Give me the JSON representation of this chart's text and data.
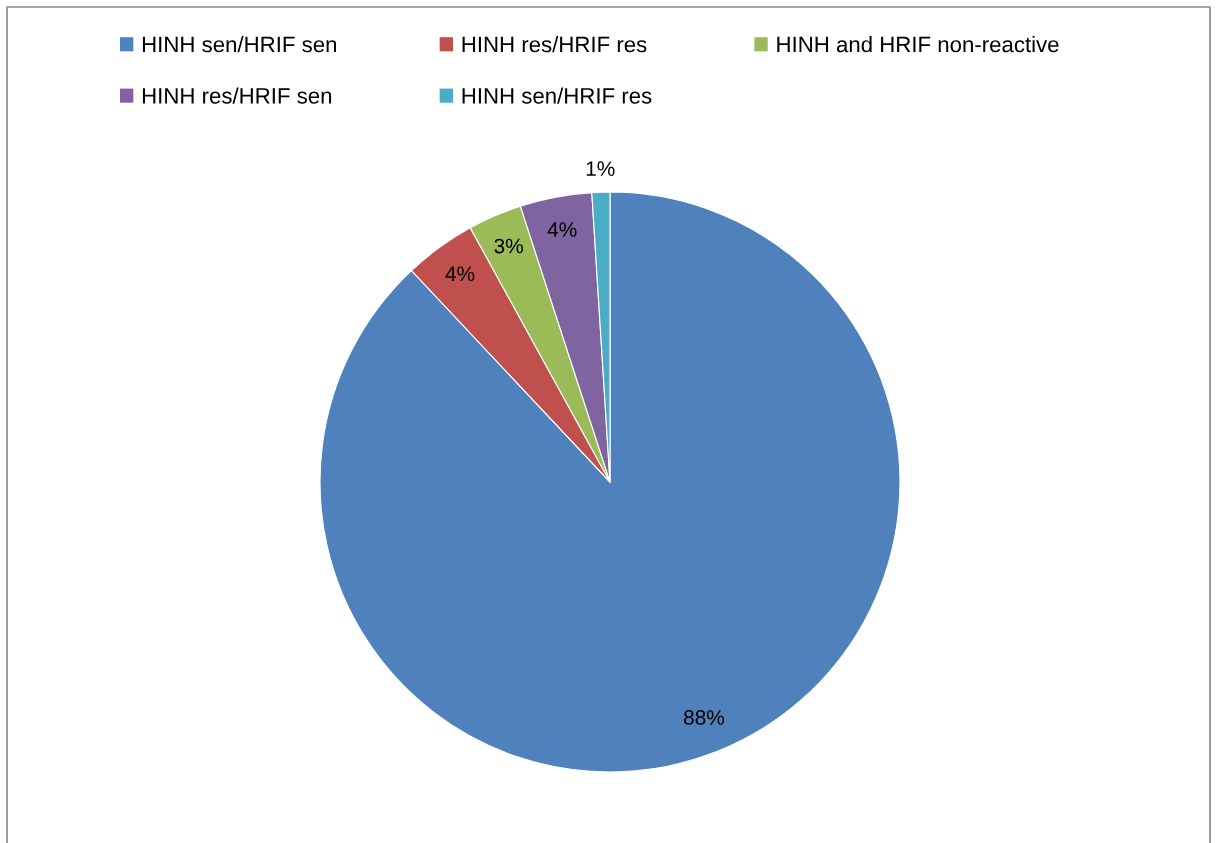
{
  "chart_data": {
    "type": "pie",
    "categories": [
      "HINH sen/HRIF sen",
      "HINH res/HRIF res",
      "HINH and HRIF non-reactive",
      "HINH res/HRIF sen",
      "HINH sen/HRIF res"
    ],
    "values": [
      88,
      4,
      3,
      4,
      1
    ],
    "colors": [
      "#4f81bd",
      "#c0504d",
      "#9bbb59",
      "#8064a2",
      "#4bacc6"
    ],
    "value_labels": [
      "88%",
      "4%",
      "3%",
      "4%",
      "1%"
    ],
    "legend": "top"
  }
}
